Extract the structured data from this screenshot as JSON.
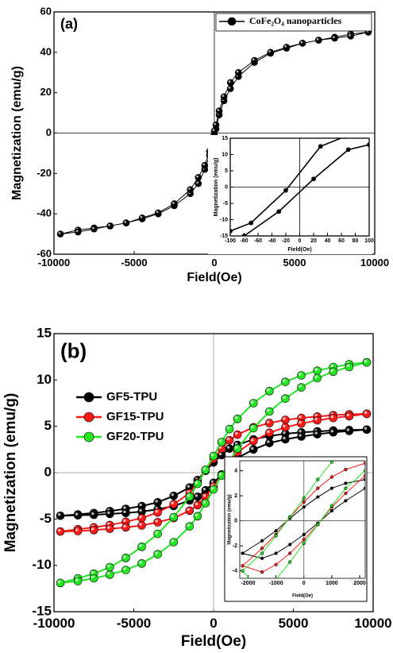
{
  "chart_data": [
    {
      "type": "line",
      "title": "(a)",
      "xlabel": "Field(Oe)",
      "ylabel": "Magnetization (emu/g)",
      "xlim": [
        -10000,
        10000
      ],
      "ylim": [
        -60,
        60
      ],
      "xticks": [
        -10000,
        -5000,
        0,
        5000,
        10000
      ],
      "yticks": [
        -60,
        -40,
        -20,
        0,
        20,
        40,
        60
      ],
      "zero_lines": true,
      "legend": "upper right",
      "series": [
        {
          "name": "CoFe₂O₄ nanoparticles",
          "color": "#000000",
          "x": [
            9600,
            8500,
            7500,
            6500,
            5500,
            4500,
            3500,
            2500,
            1500,
            1000,
            600,
            300,
            100,
            0,
            -100,
            -300,
            -600,
            -1000,
            -1500,
            -2500,
            -3500,
            -4500,
            -5500,
            -6500,
            -7500,
            -8500,
            -9600,
            -8500,
            -7500,
            -6500,
            -5500,
            -4500,
            -3500,
            -2500,
            -1500,
            -1000,
            -600,
            -300,
            -100,
            0,
            100,
            300,
            600,
            1000,
            1500,
            2500,
            3500,
            4500,
            5500,
            6500,
            7500,
            8500,
            9600
          ],
          "values": [
            50,
            49,
            47.5,
            46,
            44.5,
            42,
            39.5,
            35,
            28,
            22,
            16,
            9,
            2,
            -1,
            -4,
            -11,
            -18,
            -25,
            -30,
            -36,
            -40,
            -42.5,
            -44.5,
            -46,
            -47,
            -48,
            -50,
            -49,
            -47.5,
            -46,
            -44.5,
            -42,
            -39.5,
            -35,
            -28,
            -22,
            -16,
            -9,
            -2,
            1,
            4,
            11,
            18,
            25,
            30,
            36,
            40,
            42.5,
            44.5,
            46,
            47,
            48,
            50
          ]
        }
      ]
    },
    {
      "type": "line",
      "xlabel": "Field(Oe)",
      "ylabel": "Magnetization (emu/g)",
      "xlim": [
        -100,
        100
      ],
      "ylim": [
        -15,
        15
      ],
      "xticks": [
        -100,
        -80,
        -60,
        -40,
        -20,
        0,
        20,
        40,
        60,
        80,
        100
      ],
      "yticks": [
        -15,
        -10,
        -5,
        0,
        5,
        10,
        15
      ],
      "zero_lines": true,
      "series": [
        {
          "color": "#000000",
          "x": [
            -100,
            -70,
            -20,
            30,
            65
          ],
          "values": [
            -13.5,
            -11,
            -1,
            12.5,
            15.5
          ]
        },
        {
          "color": "#000000",
          "x": [
            -80,
            -30,
            20,
            70,
            100
          ],
          "values": [
            -15,
            -7.5,
            2.5,
            11.5,
            13
          ]
        }
      ]
    },
    {
      "type": "line",
      "title": "(b)",
      "xlabel": "Field(Oe)",
      "ylabel": "Magnetization (emu/g)",
      "xlim": [
        -10000,
        10000
      ],
      "ylim": [
        -15,
        15
      ],
      "xticks": [
        -10000,
        -5000,
        0,
        5000,
        10000
      ],
      "yticks": [
        -15,
        -10,
        -5,
        0,
        5,
        10,
        15
      ],
      "zero_lines": true,
      "legend": "upper left",
      "x": [
        9600,
        8500,
        7500,
        6500,
        5500,
        4500,
        3500,
        2500,
        1500,
        1000,
        500,
        0,
        -500,
        -1000,
        -1500,
        -2500,
        -3500,
        -4500,
        -5500,
        -6500,
        -7500,
        -8500,
        -9600,
        -8500,
        -7500,
        -6500,
        -5500,
        -4500,
        -3500,
        -2500,
        -1500,
        -1000,
        -500,
        0,
        500,
        1000,
        1500,
        2500,
        3500,
        4500,
        5500,
        6500,
        7500,
        8500,
        9600
      ],
      "series": [
        {
          "name": "GF5-TPU",
          "color": "#000000",
          "values": [
            4.65,
            4.6,
            4.55,
            4.45,
            4.35,
            4.2,
            3.95,
            3.6,
            3.0,
            2.6,
            1.9,
            1.1,
            0.2,
            -0.8,
            -1.6,
            -2.5,
            -3.2,
            -3.6,
            -3.9,
            -4.15,
            -4.35,
            -4.5,
            -4.65,
            -4.6,
            -4.55,
            -4.45,
            -4.35,
            -4.2,
            -3.95,
            -3.6,
            -3.0,
            -2.6,
            -1.9,
            -1.1,
            -0.2,
            0.8,
            1.6,
            2.5,
            3.2,
            3.6,
            3.9,
            4.15,
            4.35,
            4.5,
            4.65
          ]
        },
        {
          "name": "GF15-TPU",
          "color": "#ff1a1a",
          "values": [
            6.35,
            6.3,
            6.2,
            6.05,
            5.9,
            5.7,
            5.35,
            4.9,
            4.1,
            3.5,
            2.6,
            1.5,
            0.3,
            -1.1,
            -2.2,
            -3.4,
            -4.3,
            -4.9,
            -5.3,
            -5.65,
            -5.9,
            -6.1,
            -6.35,
            -6.3,
            -6.2,
            -6.05,
            -5.9,
            -5.7,
            -5.35,
            -4.9,
            -4.1,
            -3.5,
            -2.6,
            -1.5,
            -0.3,
            1.1,
            2.2,
            3.4,
            4.3,
            4.9,
            5.3,
            5.65,
            5.9,
            6.1,
            6.35
          ]
        },
        {
          "name": "GF20-TPU",
          "color": "#22e622",
          "values": [
            11.9,
            11.7,
            11.4,
            11.0,
            10.5,
            9.8,
            8.8,
            7.5,
            5.8,
            4.7,
            3.3,
            1.8,
            0.3,
            -1.2,
            -2.6,
            -4.8,
            -6.6,
            -8.0,
            -9.2,
            -10.2,
            -10.9,
            -11.4,
            -11.9,
            -11.7,
            -11.4,
            -11.0,
            -10.5,
            -9.8,
            -8.8,
            -7.5,
            -5.8,
            -4.7,
            -3.3,
            -1.8,
            -0.3,
            1.2,
            2.6,
            4.8,
            6.6,
            8.0,
            9.2,
            10.2,
            10.9,
            11.4,
            11.9
          ]
        }
      ]
    },
    {
      "type": "line",
      "xlabel": "Field(Oe)",
      "ylabel": "Magnetization (emu/g)",
      "xlim": [
        -2300,
        2200
      ],
      "ylim": [
        -4.6,
        4.8
      ],
      "xticks": [
        -2000,
        -1000,
        0,
        1000,
        2000
      ],
      "yticks": [
        -4,
        -2,
        0,
        2,
        4
      ],
      "zero_lines": true,
      "x": [
        2200,
        1500,
        1000,
        500,
        0,
        -500,
        -1000,
        -1500,
        -2200,
        -1500,
        -1000,
        -500,
        0,
        500,
        1000,
        1500,
        2200
      ],
      "series": [
        {
          "color": "#000000",
          "values": [
            3.3,
            3.0,
            2.6,
            1.9,
            1.1,
            0.2,
            -0.8,
            -1.6,
            -2.6,
            -3.0,
            -2.6,
            -1.9,
            -1.1,
            -0.2,
            0.8,
            1.6,
            2.6
          ]
        },
        {
          "color": "#ff1a1a",
          "values": [
            4.6,
            4.1,
            3.5,
            2.6,
            1.5,
            0.3,
            -1.1,
            -2.2,
            -3.6,
            -4.1,
            -3.5,
            -2.6,
            -1.5,
            -0.3,
            1.1,
            2.2,
            3.6
          ]
        },
        {
          "color": "#22e622",
          "values": [
            7.0,
            5.8,
            4.7,
            3.3,
            1.8,
            0.3,
            -1.2,
            -2.6,
            -4.0,
            -5.8,
            -4.7,
            -3.3,
            -1.8,
            -0.3,
            1.2,
            2.6,
            4.0
          ]
        }
      ]
    }
  ]
}
